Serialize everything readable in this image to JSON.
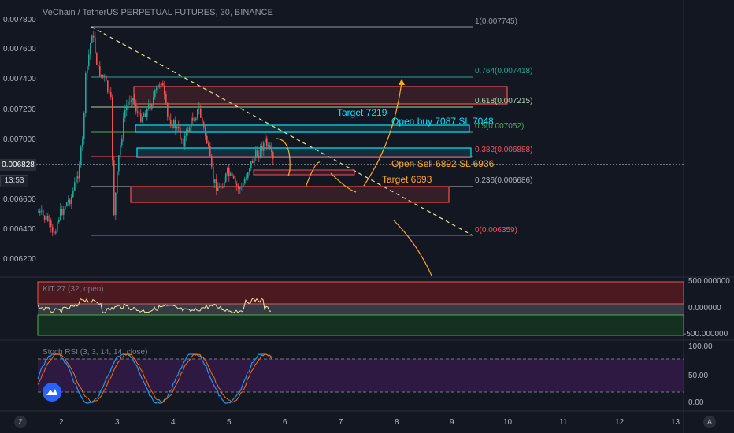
{
  "header": {
    "title": "VeChain / TetherUS PERPETUAL FUTURES, 30, BINANCE"
  },
  "price_axis": {
    "labels": [
      "0.007800",
      "0.007600",
      "0.007400",
      "0.007200",
      "0.007000",
      "0.006600",
      "0.006400",
      "0.006200"
    ],
    "current_price": "0.006828",
    "countdown": "13:53"
  },
  "time_axis": {
    "labels": [
      "2",
      "3",
      "4",
      "5",
      "6",
      "7",
      "8",
      "9",
      "10",
      "11",
      "12",
      "13"
    ]
  },
  "fib_levels": [
    {
      "label": "1(0.007745)",
      "color": "#9598a1"
    },
    {
      "label": "0.764(0.007418)",
      "color": "#26a69a"
    },
    {
      "label": "0.618(0.007215)",
      "color": "#a5d6a7"
    },
    {
      "label": "0.5(0.007052)",
      "color": "#4caf50"
    },
    {
      "label": "0.382(0.006888)",
      "color": "#f7525f"
    },
    {
      "label": "0.236(0.006686)",
      "color": "#b2b5be"
    },
    {
      "label": "0(0.006359)",
      "color": "#f7525f"
    }
  ],
  "annotations": {
    "target_upper": "Target 7219",
    "open_buy": "Open buy 7087 SL 7048",
    "open_sell": "Open Sell 6892 SL 6936",
    "target_lower": "Target 6693"
  },
  "indicator1": {
    "label": "KIT 27 (32, open)",
    "axis": [
      "500.000000",
      "0.000000",
      "-500.000000"
    ]
  },
  "indicator2": {
    "label": "Stoch RSI (3, 3, 14, 14, close)",
    "axis": [
      "100.00",
      "50.00",
      "0.00"
    ]
  },
  "corner_buttons": {
    "left": "Z",
    "right": "A"
  },
  "colors": {
    "background": "#131722",
    "up": "#26a69a",
    "down": "#ef5350",
    "annotation_cyan": "#00e5ff",
    "annotation_orange": "#ffa726",
    "fib_line": "#f0e68c"
  }
}
